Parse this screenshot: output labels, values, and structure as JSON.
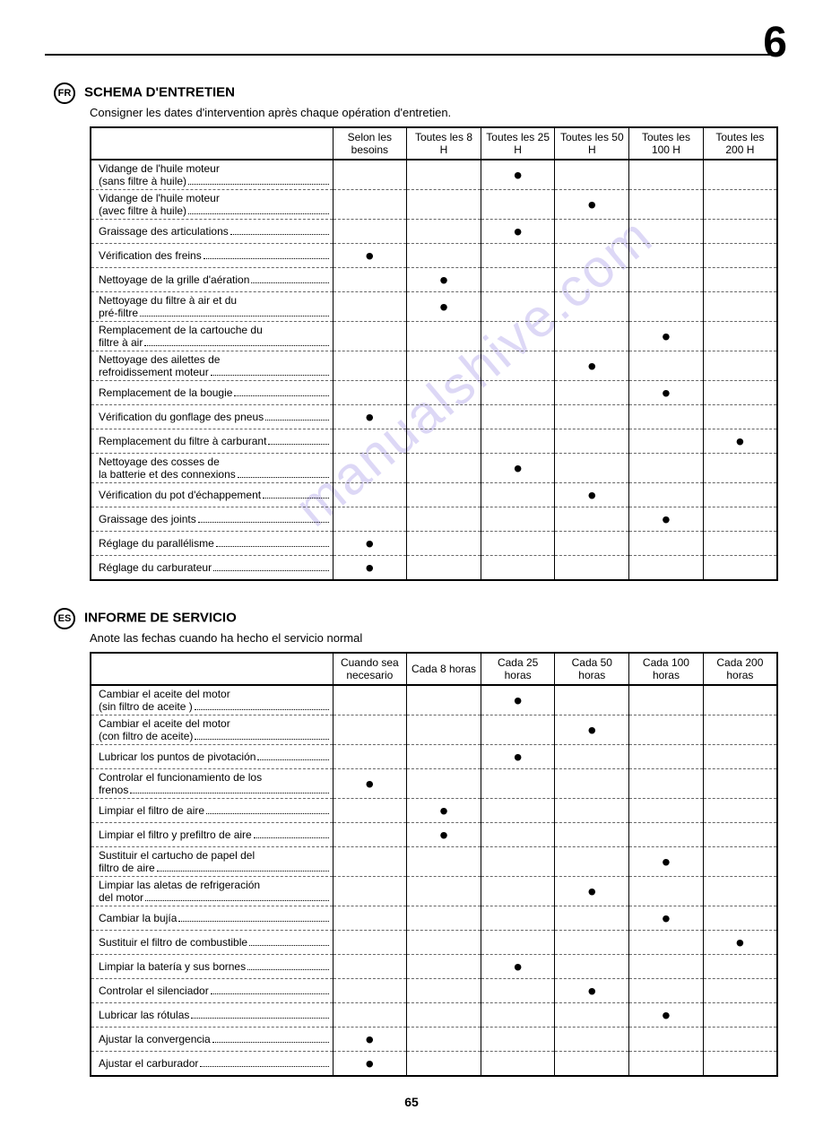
{
  "chapter": "6",
  "page_number": "65",
  "watermark": "manualshive.com",
  "colors": {
    "text": "#000000",
    "background": "#ffffff",
    "watermark": "rgba(120,100,220,0.25)",
    "dash": "#666666"
  },
  "sections": [
    {
      "lang_code": "FR",
      "title": "SCHEMA D'ENTRETIEN",
      "subtitle": "Consigner les dates d'intervention après chaque opération d'entretien.",
      "columns": [
        "Selon les besoins",
        "Toutes les 8 H",
        "Toutes les 25 H",
        "Toutes les 50 H",
        "Toutes les 100 H",
        "Toutes les 200 H"
      ],
      "rows": [
        {
          "label": "Vidange de l'huile moteur (sans filtre à huile)",
          "marks": [
            false,
            false,
            true,
            false,
            false,
            false
          ],
          "multiline": true,
          "split": [
            "Vidange de l'huile moteur",
            "(sans filtre à huile)"
          ]
        },
        {
          "label": "Vidange de l'huile moteur (avec filtre à huile)",
          "marks": [
            false,
            false,
            false,
            true,
            false,
            false
          ],
          "multiline": true,
          "split": [
            "Vidange de l'huile moteur",
            "(avec filtre à huile)"
          ]
        },
        {
          "label": "Graissage des articulations",
          "marks": [
            false,
            false,
            true,
            false,
            false,
            false
          ]
        },
        {
          "label": "Vérification des freins",
          "marks": [
            true,
            false,
            false,
            false,
            false,
            false
          ]
        },
        {
          "label": "Nettoyage de la grille d'aération",
          "marks": [
            false,
            true,
            false,
            false,
            false,
            false
          ]
        },
        {
          "label": "Nettoyage du filtre à air et du pré-filtre",
          "marks": [
            false,
            true,
            false,
            false,
            false,
            false
          ],
          "multiline": true,
          "split": [
            "Nettoyage du filtre à air et du",
            "pré-filtre"
          ]
        },
        {
          "label": "Remplacement de la cartouche du filtre à air",
          "marks": [
            false,
            false,
            false,
            false,
            true,
            false
          ],
          "multiline": true,
          "split": [
            "Remplacement de la cartouche du",
            "filtre à air"
          ]
        },
        {
          "label": "Nettoyage des ailettes de refroidissement moteur",
          "marks": [
            false,
            false,
            false,
            true,
            false,
            false
          ],
          "multiline": true,
          "split": [
            "Nettoyage des ailettes de",
            "refroidissement moteur"
          ]
        },
        {
          "label": "Remplacement de la bougie",
          "marks": [
            false,
            false,
            false,
            false,
            true,
            false
          ]
        },
        {
          "label": "Vérification du gonflage des pneus",
          "marks": [
            true,
            false,
            false,
            false,
            false,
            false
          ]
        },
        {
          "label": "Remplacement du filtre à carburant",
          "marks": [
            false,
            false,
            false,
            false,
            false,
            true
          ]
        },
        {
          "label": "Nettoyage des cosses de la batterie et des connexions",
          "marks": [
            false,
            false,
            true,
            false,
            false,
            false
          ],
          "multiline": true,
          "split": [
            "Nettoyage des cosses de",
            "la batterie et des connexions"
          ]
        },
        {
          "label": "Vérification du pot d'échappement",
          "marks": [
            false,
            false,
            false,
            true,
            false,
            false
          ]
        },
        {
          "label": "Graissage des joints",
          "marks": [
            false,
            false,
            false,
            false,
            true,
            false
          ]
        },
        {
          "label": "Réglage du parallélisme",
          "marks": [
            true,
            false,
            false,
            false,
            false,
            false
          ]
        },
        {
          "label": "Réglage du carburateur",
          "marks": [
            true,
            false,
            false,
            false,
            false,
            false
          ]
        }
      ]
    },
    {
      "lang_code": "ES",
      "title": "INFORME DE SERVICIO",
      "subtitle": "Anote las fechas cuando ha hecho el servicio normal",
      "columns": [
        "Cuando sea necesario",
        "Cada 8 horas",
        "Cada 25 horas",
        "Cada 50 horas",
        "Cada 100 horas",
        "Cada 200 horas"
      ],
      "rows": [
        {
          "label": "Cambiar el aceite del motor (sin filtro de aceite )",
          "marks": [
            false,
            false,
            true,
            false,
            false,
            false
          ],
          "multiline": true,
          "split": [
            "Cambiar el aceite del motor",
            "(sin filtro de aceite )"
          ]
        },
        {
          "label": "Cambiar el aceite del motor (con filtro de aceite)",
          "marks": [
            false,
            false,
            false,
            true,
            false,
            false
          ],
          "multiline": true,
          "split": [
            "Cambiar el aceite del motor",
            "(con filtro de aceite)"
          ]
        },
        {
          "label": "Lubricar los puntos de pivotación",
          "marks": [
            false,
            false,
            true,
            false,
            false,
            false
          ]
        },
        {
          "label": "Controlar el funcionamiento de los frenos",
          "marks": [
            true,
            false,
            false,
            false,
            false,
            false
          ],
          "multiline": true,
          "split": [
            "Controlar el funcionamiento de los",
            "frenos"
          ]
        },
        {
          "label": "Limpiar el filtro de aire",
          "marks": [
            false,
            true,
            false,
            false,
            false,
            false
          ]
        },
        {
          "label": "Limpiar el filtro y prefiltro de aire",
          "marks": [
            false,
            true,
            false,
            false,
            false,
            false
          ]
        },
        {
          "label": "Sustituir el cartucho de papel del filtro de aire",
          "marks": [
            false,
            false,
            false,
            false,
            true,
            false
          ],
          "multiline": true,
          "split": [
            "Sustituir el cartucho de papel del",
            "filtro de aire"
          ]
        },
        {
          "label": "Limpiar las aletas de refrigeración del motor",
          "marks": [
            false,
            false,
            false,
            true,
            false,
            false
          ],
          "multiline": true,
          "split": [
            "Limpiar las aletas de refrigeración",
            "del motor"
          ]
        },
        {
          "label": "Cambiar la bujía",
          "marks": [
            false,
            false,
            false,
            false,
            true,
            false
          ]
        },
        {
          "label": "Sustituir el filtro de combustible",
          "marks": [
            false,
            false,
            false,
            false,
            false,
            true
          ]
        },
        {
          "label": "Limpiar la batería y sus bornes",
          "marks": [
            false,
            false,
            true,
            false,
            false,
            false
          ]
        },
        {
          "label": "Controlar el silenciador",
          "marks": [
            false,
            false,
            false,
            true,
            false,
            false
          ]
        },
        {
          "label": "Lubricar las rótulas",
          "marks": [
            false,
            false,
            false,
            false,
            true,
            false
          ]
        },
        {
          "label": "Ajustar la convergencia",
          "marks": [
            true,
            false,
            false,
            false,
            false,
            false
          ]
        },
        {
          "label": "Ajustar el carburador",
          "marks": [
            true,
            false,
            false,
            false,
            false,
            false
          ]
        }
      ]
    }
  ]
}
